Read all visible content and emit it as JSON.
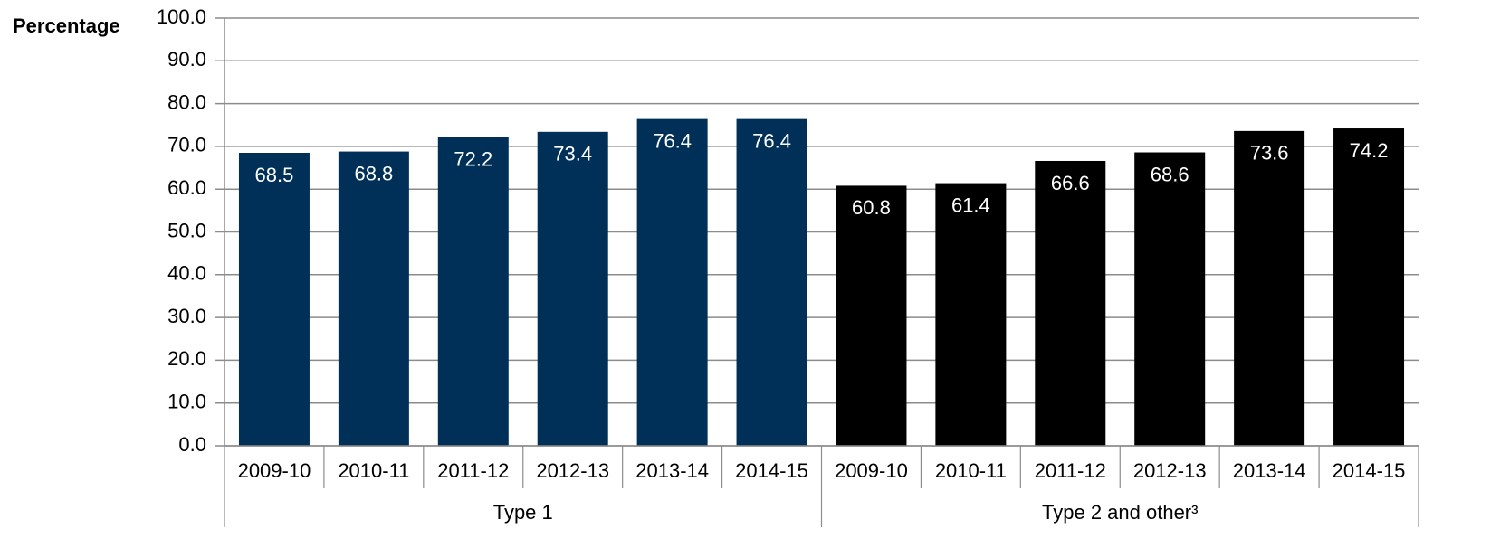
{
  "chart_data": {
    "type": "bar",
    "y_label": "Percentage",
    "categories": [
      "2009-10",
      "2010-11",
      "2011-12",
      "2012-13",
      "2013-14",
      "2014-15"
    ],
    "series": [
      {
        "name": "Type 1",
        "color": "#003057",
        "values": [
          68.5,
          68.8,
          72.2,
          73.4,
          76.4,
          76.4
        ]
      },
      {
        "name": "Type 2 and other³",
        "color": "#000000",
        "values": [
          60.8,
          61.4,
          66.6,
          68.6,
          73.6,
          74.2
        ]
      }
    ],
    "ylim": [
      0,
      100
    ],
    "yticks": [
      {
        "value": 0,
        "label": "0.0"
      },
      {
        "value": 10,
        "label": "10.0"
      },
      {
        "value": 20,
        "label": "20.0"
      },
      {
        "value": 30,
        "label": "30.0"
      },
      {
        "value": 40,
        "label": "40.0"
      },
      {
        "value": 50,
        "label": "50.0"
      },
      {
        "value": 60,
        "label": "60.0"
      },
      {
        "value": 70,
        "label": "70.0"
      },
      {
        "value": 80,
        "label": "80.0"
      },
      {
        "value": 90,
        "label": "90.0"
      },
      {
        "value": 100,
        "label": "100.0"
      }
    ],
    "grid": true
  }
}
